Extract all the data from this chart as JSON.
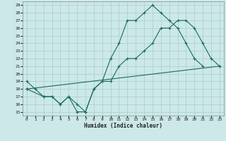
{
  "xlabel": "Humidex (Indice chaleur)",
  "bg_color": "#cce8e8",
  "grid_color": "#aacccc",
  "line_color": "#1a6b5a",
  "xlim": [
    -0.5,
    23.5
  ],
  "ylim": [
    14.5,
    29.5
  ],
  "xticks": [
    0,
    1,
    2,
    3,
    4,
    5,
    6,
    7,
    8,
    9,
    10,
    11,
    12,
    13,
    14,
    15,
    16,
    17,
    18,
    19,
    20,
    21,
    22,
    23
  ],
  "yticks": [
    15,
    16,
    17,
    18,
    19,
    20,
    21,
    22,
    23,
    24,
    25,
    26,
    27,
    28,
    29
  ],
  "line1_x": [
    0,
    1,
    2,
    3,
    4,
    5,
    6,
    7,
    8,
    9,
    10,
    11,
    12,
    13,
    14,
    15,
    16,
    17,
    18,
    19,
    20,
    21
  ],
  "line1_y": [
    19,
    18,
    17,
    17,
    16,
    17,
    15,
    15,
    18,
    19,
    22,
    24,
    27,
    27,
    28,
    29,
    28,
    27,
    26,
    24,
    22,
    21
  ],
  "line2_x": [
    0,
    23
  ],
  "line2_y": [
    18,
    21
  ],
  "line3_x": [
    0,
    2,
    3,
    4,
    5,
    6,
    7,
    8,
    9,
    10,
    11,
    12,
    13,
    14,
    15,
    16,
    17,
    18,
    19,
    20,
    21,
    22,
    23
  ],
  "line3_y": [
    18,
    17,
    17,
    16,
    17,
    16,
    15,
    18,
    19,
    19,
    21,
    22,
    22,
    23,
    24,
    26,
    26,
    27,
    27,
    26,
    24,
    22,
    21
  ]
}
